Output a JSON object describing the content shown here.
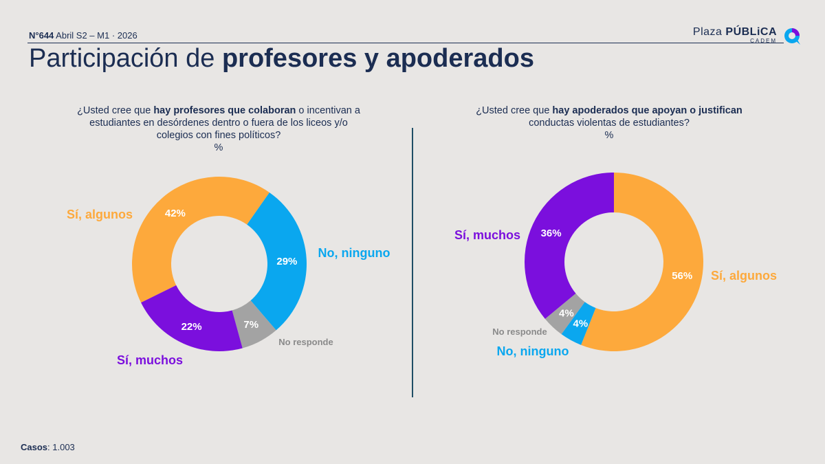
{
  "header": {
    "issue_bold": "N°644",
    "issue_rest": " Abril S2 – M1 · 2026"
  },
  "logo": {
    "text_light": "Plaza ",
    "text_bold": "PÚBLiCA",
    "sub": "CADEM"
  },
  "title": {
    "part1": "Participación de ",
    "part2": "profesores y apoderados"
  },
  "left_question": {
    "pre": "¿Usted cree que ",
    "bold": "hay profesores que colaboran",
    "post": " o incentivan a estudiantes en desórdenes dentro o fuera de los liceos y/o colegios con fines políticos?",
    "unit": "%"
  },
  "right_question": {
    "pre": "¿Usted cree que ",
    "bold": "hay apoderados que apoyan o justifican",
    "post": " conductas violentas de estudiantes?",
    "unit": "%"
  },
  "footer": {
    "label": "Casos",
    "value": ": 1.003"
  },
  "colors": {
    "si_algunos": "#fda93c",
    "no_ninguno": "#0aa7ef",
    "no_responde": "#a3a3a3",
    "si_muchos": "#7b0fdd",
    "navy": "#1b2d52"
  },
  "chart_data": [
    {
      "type": "pie",
      "donut": true,
      "unit": "%",
      "slices": [
        {
          "label": "Sí, algunos",
          "value": 42,
          "display": "42%"
        },
        {
          "label": "No, ninguno",
          "value": 29,
          "display": "29%"
        },
        {
          "label": "No responde",
          "value": 7,
          "display": "7%"
        },
        {
          "label": "Sí, muchos",
          "value": 22,
          "display": "22%"
        }
      ]
    },
    {
      "type": "pie",
      "donut": true,
      "unit": "%",
      "slices": [
        {
          "label": "Sí, algunos",
          "value": 56,
          "display": "56%"
        },
        {
          "label": "No, ninguno",
          "value": 4,
          "display": "4%"
        },
        {
          "label": "No responde",
          "value": 4,
          "display": "4%"
        },
        {
          "label": "Sí, muchos",
          "value": 36,
          "display": "36%"
        }
      ]
    }
  ]
}
